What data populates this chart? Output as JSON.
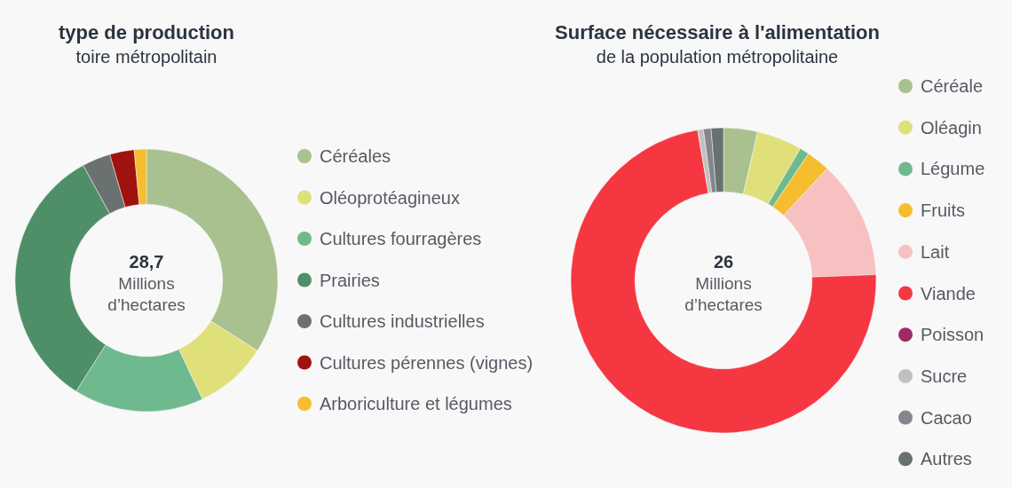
{
  "chart_data": [
    {
      "type": "donut",
      "title": "type de production",
      "subtitle": "toire métropolitain",
      "annotations": [
        "28,7",
        "Millions",
        "d’hectares"
      ],
      "legend": "right",
      "categories": [
        "Céréales",
        "Oléoprotéagineux",
        "Cultures fourragères",
        "Prairies",
        "Cultures industrielles",
        "Cultures pérennes (vignes)",
        "Arboriculture et légumes"
      ],
      "values": [
        34,
        9,
        16,
        33,
        3.5,
        3,
        1.5
      ],
      "colors": [
        "#a8c18e",
        "#e0e07a",
        "#6fb98f",
        "#4e8f68",
        "#6b7170",
        "#a0120e",
        "#f6bd2f"
      ]
    },
    {
      "type": "donut",
      "title": "Surface nécessaire à l'alimentation",
      "subtitle": "de la population métropolitaine",
      "annotations": [
        "26",
        "Millions",
        "d’hectares"
      ],
      "legend": "right",
      "categories": [
        "Céréale",
        "Oléagin",
        "Légume",
        "Fruits",
        "Lait",
        "Viande",
        "Poisson",
        "Sucre",
        "Cacao",
        "Autres"
      ],
      "values": [
        3.6,
        4.8,
        1.0,
        2.5,
        12.5,
        72.9,
        0,
        0.6,
        0.8,
        1.3
      ],
      "colors": [
        "#a8c18e",
        "#e0e07a",
        "#6fb98f",
        "#f6bd2f",
        "#f7c0c1",
        "#f53741",
        "#a12a66",
        "#c0c0c0",
        "#84858d",
        "#677170"
      ]
    }
  ]
}
